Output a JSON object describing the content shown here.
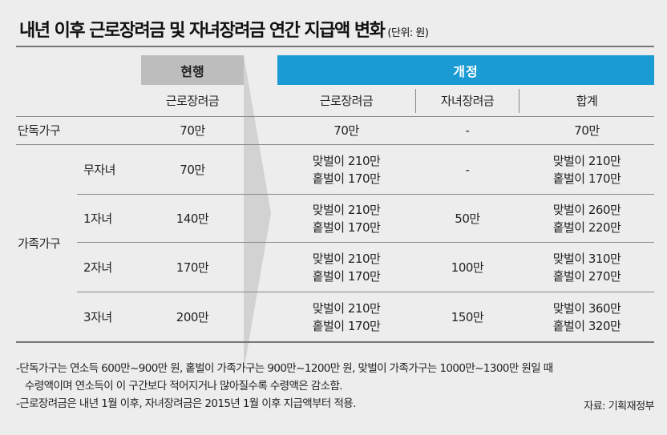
{
  "title": "내년 이후 근로장려금 및 자녀장려금 연간 지급액 변화",
  "unit": "(단위: 원)",
  "header": {
    "current": "현행",
    "revised": "개정",
    "sub_current_work": "근로장려금",
    "sub_revised_work": "근로장려금",
    "sub_revised_child": "자녀장려금",
    "sub_revised_total": "합계"
  },
  "rows": {
    "single": {
      "label": "단독가구",
      "current": "70만",
      "work": "70만",
      "child": "-",
      "total": "70만"
    },
    "family_label": "가족가구",
    "family": [
      {
        "label": "무자녀",
        "current": "70만",
        "work_dual": "맞벌이 210만",
        "work_single": "홑벌이 170만",
        "child": "-",
        "total_dual": "맞벌이 210만",
        "total_single": "홑벌이 170만"
      },
      {
        "label": "1자녀",
        "current": "140만",
        "work_dual": "맞벌이 210만",
        "work_single": "홑벌이 170만",
        "child": "50만",
        "total_dual": "맞벌이 260만",
        "total_single": "홑벌이 220만"
      },
      {
        "label": "2자녀",
        "current": "170만",
        "work_dual": "맞벌이 210만",
        "work_single": "홑벌이 170만",
        "child": "100만",
        "total_dual": "맞벌이 310만",
        "total_single": "홑벌이 270만"
      },
      {
        "label": "3자녀",
        "current": "200만",
        "work_dual": "맞벌이 210만",
        "work_single": "홑벌이 170만",
        "child": "150만",
        "total_dual": "맞벌이 360만",
        "total_single": "홑벌이 320만"
      }
    ]
  },
  "notes": {
    "line1": "-단독가구는 연소득 600만~900만 원, 홑벌이 가족가구는 900만~1200만 원, 맞벌이 가족가구는 1000만~1300만 원일 때",
    "line2": "수령액이며 연소득이 이 구간보다 적어지거나 많아질수록 수령액은 감소함.",
    "line3": "-근로장려금은 내년 1월 이후, 자녀장려금은 2015년 1월 이후 지급액부터 적용."
  },
  "source": "자료: 기획재정부",
  "colors": {
    "accent_blue": "#1a9bd3",
    "current_gray": "#bdbdbd",
    "background": "#ededed"
  }
}
